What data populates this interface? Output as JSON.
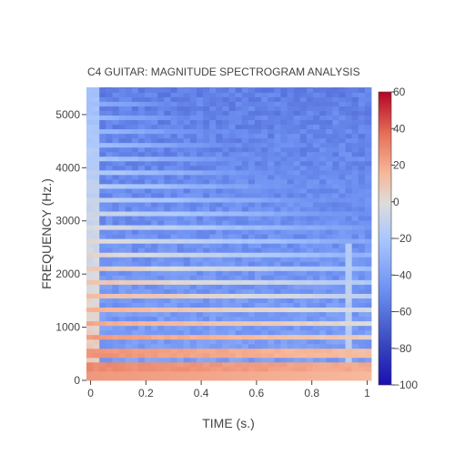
{
  "chart_data": {
    "type": "heatmap",
    "title": "C4 GUITAR: MAGNITUDE SPECTROGRAM ANALYSIS",
    "xlabel": "TIME (s.)",
    "ylabel": "FREQUENCY (Hz.)",
    "xlim": [
      -0.015,
      1.015
    ],
    "ylim": [
      0,
      5512
    ],
    "x_ticks": [
      0,
      0.2,
      0.4,
      0.6,
      0.8,
      1
    ],
    "x_tick_labels": [
      "0",
      "0.2",
      "0.4",
      "0.6",
      "0.8",
      "1"
    ],
    "y_ticks": [
      0,
      1000,
      2000,
      3000,
      4000,
      5000
    ],
    "y_tick_labels": [
      "0",
      "1000",
      "2000",
      "3000",
      "4000",
      "5000"
    ],
    "colorscale": {
      "min": -100,
      "max": 60,
      "ticks": [
        60,
        40,
        20,
        0,
        -20,
        -40,
        -60,
        -80,
        -100
      ],
      "tick_labels": [
        "60",
        "40",
        "20",
        "0",
        "−20",
        "−40",
        "−60",
        "−80",
        "−100"
      ],
      "stops": [
        [
          0.0,
          "#1a0fb0"
        ],
        [
          0.15,
          "#3b4cc0"
        ],
        [
          0.33,
          "#6f92f3"
        ],
        [
          0.5,
          "#aac7fd"
        ],
        [
          0.62,
          "#dddcdc"
        ],
        [
          0.72,
          "#f7b89c"
        ],
        [
          0.85,
          "#e7745b"
        ],
        [
          1.0,
          "#b40426"
        ]
      ]
    },
    "grid": {
      "time_start": -0.015,
      "time_end": 1.015,
      "time_bins": 44,
      "freq_bin_hz": 86
    },
    "harmonic_frequencies": [
      262,
      523,
      785,
      1046,
      1308,
      1570,
      1831,
      2093,
      2354,
      2616,
      2878,
      3139,
      3401,
      3662,
      3924,
      4186,
      4447,
      4709,
      4970,
      5232
    ],
    "onset_time_max": 0.03,
    "onset_level": 10,
    "late_bump_time": [
      0.91,
      0.95
    ],
    "background_level_low_freq": -40,
    "background_level_high_freq": -55,
    "harmonic_peak_level_start": 30,
    "harmonic_level_end_high": -40
  }
}
